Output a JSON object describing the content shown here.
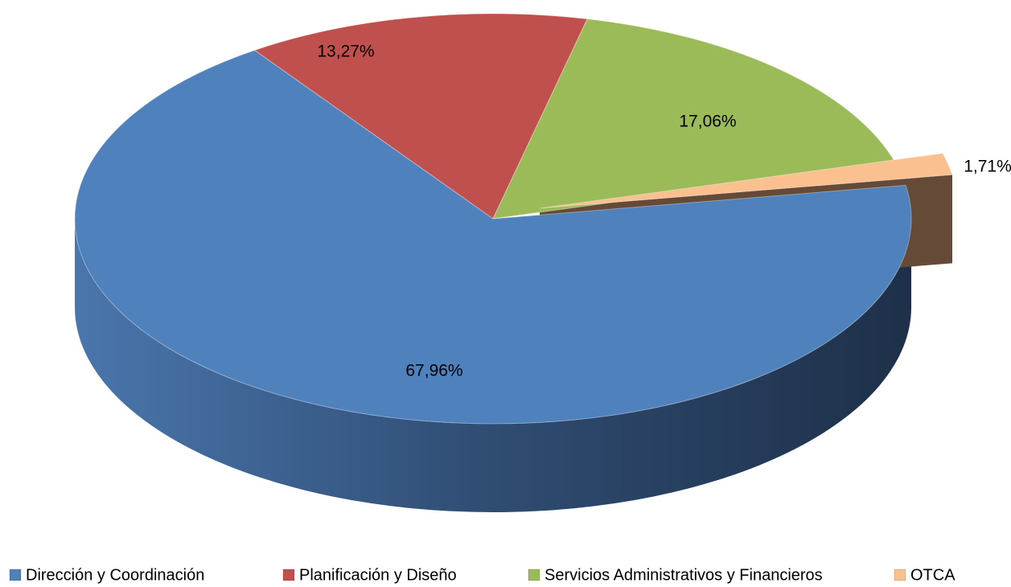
{
  "chart_data": {
    "type": "pie",
    "categories": [
      "Dirección y Coordinación",
      "Planificación y Diseño",
      "Servicios Administrativos y Financieros",
      "OTCA"
    ],
    "values": [
      67.96,
      13.27,
      17.06,
      1.71
    ],
    "value_labels": [
      "67,96%",
      "13,27%",
      "17,06%",
      "1,71%"
    ],
    "colors": [
      "#4f81bd",
      "#c0504d",
      "#9bbb59",
      "#fac090"
    ],
    "legend": "bottom"
  }
}
